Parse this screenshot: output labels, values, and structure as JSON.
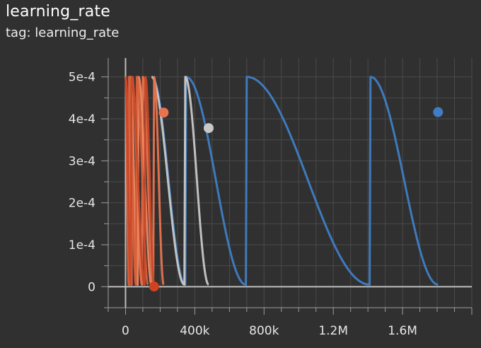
{
  "card": {
    "title": "learning_rate",
    "subtitle": "tag: learning_rate"
  },
  "chart_data": {
    "type": "line",
    "title": "learning_rate",
    "subtitle": "tag: learning_rate",
    "xlabel": "",
    "ylabel": "",
    "xlim": [
      -100000,
      2000000
    ],
    "ylim": [
      -5e-05,
      0.000545
    ],
    "x_ticks": [
      0,
      400000,
      800000,
      1200000,
      1600000
    ],
    "x_tick_labels": [
      "0",
      "400k",
      "800k",
      "1.2M",
      "1.6M"
    ],
    "y_ticks": [
      0,
      0.0001,
      0.0002,
      0.0003,
      0.0004,
      0.0005
    ],
    "y_tick_labels": [
      "0",
      "1e-4",
      "2e-4",
      "3e-4",
      "4e-4",
      "5e-4"
    ],
    "grid": true,
    "colors": {
      "background": "#303030",
      "grid": "#4a4a4a",
      "axis": "#9e9e9e",
      "blue": "#3f7ec4",
      "gray": "#c8c8c8",
      "orange": "#e8744f",
      "red": "#cc4422"
    },
    "series": [
      {
        "color": "#3f7ec4",
        "cycles": [
          [
            153000,
            345000
          ],
          [
            350000,
            695000
          ],
          [
            700000,
            1410000
          ],
          [
            1415000,
            1805000
          ]
        ],
        "end_marker": true
      },
      {
        "color": "#c8c8c8",
        "cycles": [
          [
            150000,
            340000
          ],
          [
            345000,
            480000
          ]
        ],
        "end_marker": true
      },
      {
        "color": "#e8744f",
        "cycles": [
          [
            0,
            35000
          ],
          [
            38000,
            95000
          ],
          [
            100000,
            160000
          ],
          [
            165000,
            220000
          ]
        ],
        "end_marker": true
      },
      {
        "color": "#f08a62",
        "cycles": [
          [
            0,
            25000
          ],
          [
            28000,
            70000
          ],
          [
            75000,
            150000
          ]
        ],
        "end_marker": false
      },
      {
        "color": "#d9603a",
        "cycles": [
          [
            0,
            18000
          ],
          [
            20000,
            60000
          ],
          [
            65000,
            130000
          ]
        ],
        "end_marker": false
      },
      {
        "color": "#c84828",
        "cycles": [
          [
            0,
            30000
          ],
          [
            35000,
            110000
          ],
          [
            115000,
            165000
          ]
        ],
        "end_marker": true
      }
    ]
  }
}
